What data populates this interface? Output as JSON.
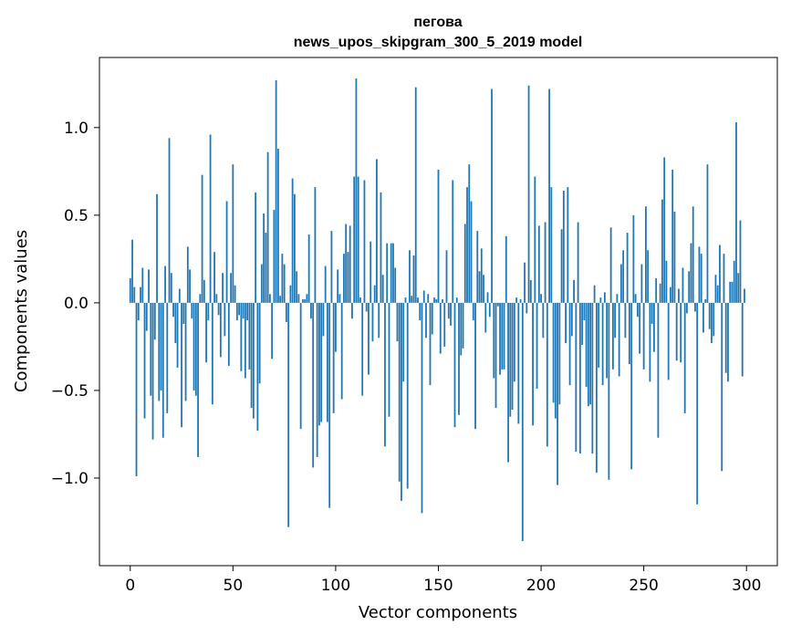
{
  "chart_data": {
    "type": "bar",
    "title_line1": "пегова",
    "title_line2": "news_upos_skipgram_300_5_2019 model",
    "xlabel": "Vector components",
    "ylabel": "Components values",
    "xlim": [
      -15,
      315
    ],
    "ylim": [
      -1.5,
      1.4
    ],
    "xticks": [
      0,
      50,
      100,
      150,
      200,
      250,
      300
    ],
    "xtick_labels": [
      "0",
      "50",
      "100",
      "150",
      "200",
      "250",
      "300"
    ],
    "yticks": [
      -1.0,
      -0.5,
      0.0,
      0.5,
      1.0
    ],
    "ytick_labels": [
      "−1.0",
      "−0.5",
      "0.0",
      "0.5",
      "1.0"
    ],
    "bar_color": "#1f77b4",
    "grid": false,
    "x": [
      0,
      1,
      2,
      3,
      4,
      5,
      6,
      7,
      8,
      9,
      10,
      11,
      12,
      13,
      14,
      15,
      16,
      17,
      18,
      19,
      20,
      21,
      22,
      23,
      24,
      25,
      26,
      27,
      28,
      29,
      30,
      31,
      32,
      33,
      34,
      35,
      36,
      37,
      38,
      39,
      40,
      41,
      42,
      43,
      44,
      45,
      46,
      47,
      48,
      49,
      50,
      51,
      52,
      53,
      54,
      55,
      56,
      57,
      58,
      59,
      60,
      61,
      62,
      63,
      64,
      65,
      66,
      67,
      68,
      69,
      70,
      71,
      72,
      73,
      74,
      75,
      76,
      77,
      78,
      79,
      80,
      81,
      82,
      83,
      84,
      85,
      86,
      87,
      88,
      89,
      90,
      91,
      92,
      93,
      94,
      95,
      96,
      97,
      98,
      99,
      100,
      101,
      102,
      103,
      104,
      105,
      106,
      107,
      108,
      109,
      110,
      111,
      112,
      113,
      114,
      115,
      116,
      117,
      118,
      119,
      120,
      121,
      122,
      123,
      124,
      125,
      126,
      127,
      128,
      129,
      130,
      131,
      132,
      133,
      134,
      135,
      136,
      137,
      138,
      139,
      140,
      141,
      142,
      143,
      144,
      145,
      146,
      147,
      148,
      149,
      150,
      151,
      152,
      153,
      154,
      155,
      156,
      157,
      158,
      159,
      160,
      161,
      162,
      163,
      164,
      165,
      166,
      167,
      168,
      169,
      170,
      171,
      172,
      173,
      174,
      175,
      176,
      177,
      178,
      179,
      180,
      181,
      182,
      183,
      184,
      185,
      186,
      187,
      188,
      189,
      190,
      191,
      192,
      193,
      194,
      195,
      196,
      197,
      198,
      199,
      200,
      201,
      202,
      203,
      204,
      205,
      206,
      207,
      208,
      209,
      210,
      211,
      212,
      213,
      214,
      215,
      216,
      217,
      218,
      219,
      220,
      221,
      222,
      223,
      224,
      225,
      226,
      227,
      228,
      229,
      230,
      231,
      232,
      233,
      234,
      235,
      236,
      237,
      238,
      239,
      240,
      241,
      242,
      243,
      244,
      245,
      246,
      247,
      248,
      249,
      250,
      251,
      252,
      253,
      254,
      255,
      256,
      257,
      258,
      259,
      260,
      261,
      262,
      263,
      264,
      265,
      266,
      267,
      268,
      269,
      270,
      271,
      272,
      273,
      274,
      275,
      276,
      277,
      278,
      279,
      280,
      281,
      282,
      283,
      284,
      285,
      286,
      287,
      288,
      289,
      290,
      291,
      292,
      293,
      294,
      295,
      296,
      297,
      298,
      299
    ],
    "values": [
      0.14,
      0.36,
      0.09,
      -0.99,
      -0.1,
      0.09,
      0.2,
      -0.66,
      -0.16,
      0.19,
      -0.53,
      -0.78,
      -0.21,
      0.62,
      -0.56,
      -0.5,
      -0.77,
      0.21,
      -0.63,
      0.94,
      0.17,
      -0.08,
      -0.23,
      -0.37,
      0.08,
      -0.71,
      -0.12,
      -0.56,
      0.32,
      0.19,
      -0.09,
      -0.5,
      -0.53,
      -0.88,
      0.05,
      0.73,
      0.13,
      -0.34,
      -0.1,
      0.96,
      -0.58,
      0.29,
      0.05,
      -0.07,
      -0.31,
      0.17,
      -0.19,
      0.58,
      -0.36,
      0.17,
      0.79,
      0.1,
      -0.1,
      -0.07,
      -0.39,
      -0.09,
      -0.43,
      -0.1,
      -0.38,
      -0.6,
      -0.66,
      0.63,
      -0.73,
      -0.46,
      0.22,
      0.51,
      0.4,
      0.86,
      0.05,
      -0.32,
      0.53,
      1.27,
      0.88,
      0.04,
      0.28,
      0.22,
      -0.11,
      -1.28,
      0.1,
      0.71,
      0.62,
      0.18,
      0.05,
      -0.72,
      0.02,
      0.02,
      0.05,
      0.39,
      -0.09,
      -0.94,
      0.66,
      -0.88,
      -0.7,
      -0.68,
      -0.19,
      0.21,
      -0.68,
      -1.17,
      0.41,
      -0.63,
      -0.28,
      0.19,
      0.05,
      -0.55,
      0.28,
      0.45,
      0.29,
      0.44,
      -0.09,
      0.72,
      1.28,
      0.72,
      0.03,
      -0.53,
      0.7,
      -0.05,
      -0.41,
      0.35,
      -0.22,
      0.1,
      0.82,
      -0.2,
      0.63,
      0.16,
      -0.82,
      0.34,
      -0.65,
      0.34,
      0.34,
      0.2,
      -0.22,
      -1.02,
      -1.13,
      -0.45,
      0.03,
      -1.06,
      0.3,
      0.04,
      0.27,
      1.23,
      0.03,
      -0.1,
      -1.2,
      0.07,
      -0.2,
      0.05,
      -0.47,
      -0.18,
      0.03,
      0.02,
      0.76,
      -0.29,
      0.02,
      -0.25,
      0.3,
      -0.09,
      -0.13,
      0.7,
      -0.71,
      0.03,
      -0.64,
      -0.3,
      -0.26,
      0.45,
      0.66,
      0.79,
      0.58,
      -0.1,
      -0.72,
      0.41,
      0.18,
      0.31,
      0.16,
      -0.17,
      0.06,
      -0.08,
      1.22,
      -0.43,
      -0.6,
      -0.02,
      -0.41,
      -0.38,
      -0.38,
      0.38,
      -0.91,
      -0.65,
      -0.61,
      -0.45,
      0.03,
      -0.69,
      0.02,
      -1.36,
      0.23,
      -0.06,
      1.24,
      0.13,
      -0.7,
      0.72,
      -0.49,
      0.44,
      0.05,
      -0.2,
      0.46,
      -0.82,
      1.22,
      0.66,
      -0.57,
      -0.66,
      -1.04,
      -0.58,
      0.42,
      0.64,
      -0.23,
      0.66,
      -0.47,
      -0.19,
      0.13,
      -0.85,
      0.46,
      -0.86,
      -0.24,
      -0.1,
      -0.48,
      -0.59,
      -0.58,
      -0.86,
      0.1,
      -0.97,
      -0.37,
      0.03,
      -0.47,
      0.06,
      -0.43,
      -1.01,
      0.43,
      -0.38,
      -0.2,
      0.05,
      -0.42,
      0.22,
      0.3,
      -0.2,
      0.4,
      -0.35,
      -0.95,
      0.5,
      0.05,
      -0.08,
      -0.29,
      0.22,
      -0.38,
      0.55,
      0.3,
      -0.45,
      -0.12,
      -0.28,
      0.14,
      -0.77,
      0.11,
      0.59,
      0.83,
      0.24,
      -0.44,
      0.09,
      0.76,
      0.52,
      -0.33,
      0.08,
      -0.34,
      0.2,
      -0.63,
      -0.06,
      0.18,
      0.34,
      0.55,
      -0.05,
      -1.15,
      0.32,
      0.28,
      -0.17,
      0.02,
      0.79,
      -0.15,
      -0.23,
      -0.19,
      0.16,
      0.1,
      0.33,
      -0.96,
      0.28,
      -0.4,
      -0.45,
      0.12,
      0.12,
      0.24,
      1.03,
      0.17,
      0.47,
      -0.42,
      0.08
    ]
  }
}
